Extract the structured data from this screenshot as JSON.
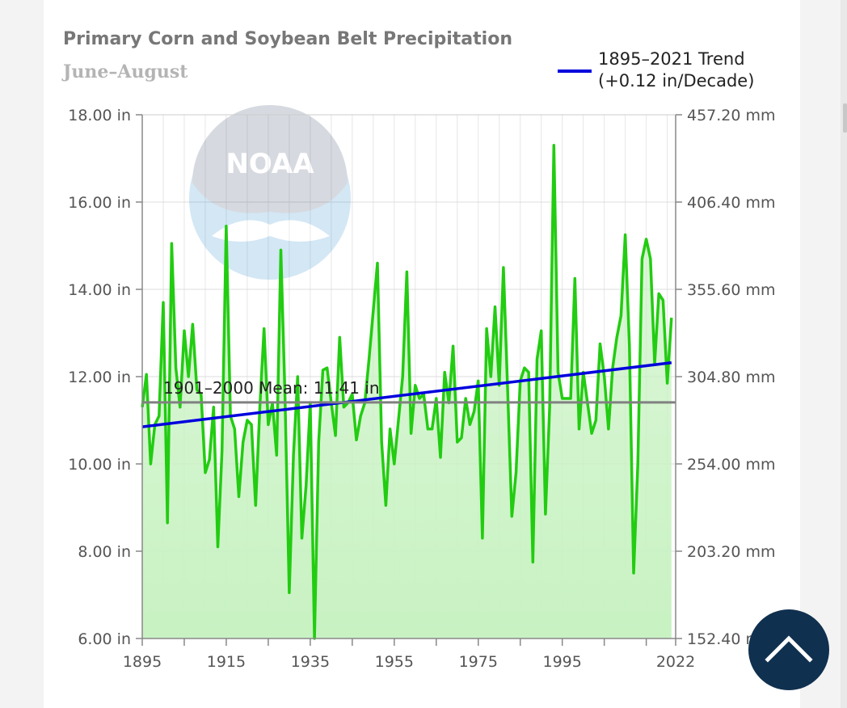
{
  "colors": {
    "series": "#22cc11",
    "fill": "#c8f2c2",
    "trend": "#0000dd",
    "mean": "#808080",
    "scroll_button": "#10304f",
    "watermark": "#2a8ccf"
  },
  "watermark": {
    "text": "NOAA",
    "icon": "noaa-logo-icon"
  },
  "scroll_top": {
    "icon": "chevron-up-icon"
  },
  "chart_data": {
    "type": "line",
    "title": "Primary Corn and Soybean Belt Precipitation",
    "subtitle": "June–August",
    "x": [
      1895,
      1896,
      1897,
      1898,
      1899,
      1900,
      1901,
      1902,
      1903,
      1904,
      1905,
      1906,
      1907,
      1908,
      1909,
      1910,
      1911,
      1912,
      1913,
      1914,
      1915,
      1916,
      1917,
      1918,
      1919,
      1920,
      1921,
      1922,
      1923,
      1924,
      1925,
      1926,
      1927,
      1928,
      1929,
      1930,
      1931,
      1932,
      1933,
      1934,
      1935,
      1936,
      1937,
      1938,
      1939,
      1940,
      1941,
      1942,
      1943,
      1944,
      1945,
      1946,
      1947,
      1948,
      1949,
      1950,
      1951,
      1952,
      1953,
      1954,
      1955,
      1956,
      1957,
      1958,
      1959,
      1960,
      1961,
      1962,
      1963,
      1964,
      1965,
      1966,
      1967,
      1968,
      1969,
      1970,
      1971,
      1972,
      1973,
      1974,
      1975,
      1976,
      1977,
      1978,
      1979,
      1980,
      1981,
      1982,
      1983,
      1984,
      1985,
      1986,
      1987,
      1988,
      1989,
      1990,
      1991,
      1992,
      1993,
      1994,
      1995,
      1996,
      1997,
      1998,
      1999,
      2000,
      2001,
      2002,
      2003,
      2004,
      2005,
      2006,
      2007,
      2008,
      2009,
      2010,
      2011,
      2012,
      2013,
      2014,
      2015,
      2016,
      2017,
      2018,
      2019,
      2020,
      2021
    ],
    "series": [
      {
        "values": [
          11.3,
          12.05,
          10.0,
          10.9,
          11.1,
          13.7,
          8.65,
          15.05,
          12.2,
          11.3,
          13.05,
          12.0,
          13.2,
          11.7,
          11.6,
          9.8,
          10.1,
          11.3,
          8.1,
          10.3,
          15.45,
          11.1,
          10.8,
          9.25,
          10.5,
          11.0,
          10.9,
          9.05,
          11.3,
          13.1,
          10.9,
          11.4,
          10.2,
          14.9,
          11.5,
          7.05,
          10.2,
          12.0,
          8.3,
          9.5,
          11.4,
          6.0,
          10.5,
          12.15,
          12.2,
          11.4,
          10.65,
          12.9,
          11.3,
          11.4,
          11.6,
          10.55,
          11.1,
          11.4,
          12.4,
          13.5,
          14.6,
          10.5,
          9.05,
          10.8,
          10.0,
          11.0,
          12.0,
          14.4,
          10.7,
          11.8,
          11.5,
          11.6,
          10.8,
          10.8,
          11.5,
          10.15,
          12.1,
          11.4,
          12.7,
          10.5,
          10.6,
          11.5,
          10.9,
          11.2,
          11.9,
          8.3,
          13.1,
          12.0,
          13.6,
          11.8,
          14.5,
          11.7,
          8.8,
          9.8,
          11.9,
          12.2,
          12.1,
          7.75,
          12.4,
          13.05,
          8.85,
          11.3,
          17.3,
          12.1,
          11.5,
          11.5,
          11.5,
          14.25,
          10.8,
          12.1,
          11.4,
          10.7,
          11.0,
          12.75,
          12.0,
          10.8,
          12.2,
          12.9,
          13.4,
          15.25,
          12.7,
          7.5,
          10.0,
          14.7,
          15.15,
          14.7,
          12.3,
          13.9,
          13.75,
          11.85,
          13.35
        ]
      }
    ],
    "xlabel": "",
    "ylabel": "",
    "ylim": [
      6,
      18
    ],
    "xlim": [
      1895,
      2022
    ],
    "y_ticks": [
      "6.00 in",
      "8.00 in",
      "10.00 in",
      "12.00 in",
      "14.00 in",
      "16.00 in",
      "18.00 in"
    ],
    "y2_ticks": [
      "152.40 mm",
      "203.20 mm",
      "254.00 mm",
      "304.80 mm",
      "355.60 mm",
      "406.40 mm",
      "457.20 mm"
    ],
    "x_ticks": [
      "1895",
      "1915",
      "1935",
      "1955",
      "1975",
      "1995",
      "2022"
    ],
    "trend": {
      "label": "1895–2021 Trend\n(+0.12 in/Decade)",
      "start": [
        1895,
        10.85
      ],
      "end": [
        2021,
        12.32
      ]
    },
    "mean": {
      "label": "1901–2000 Mean: 11.41 in",
      "value": 11.41
    },
    "grid": true,
    "legend_position": "top-right"
  }
}
